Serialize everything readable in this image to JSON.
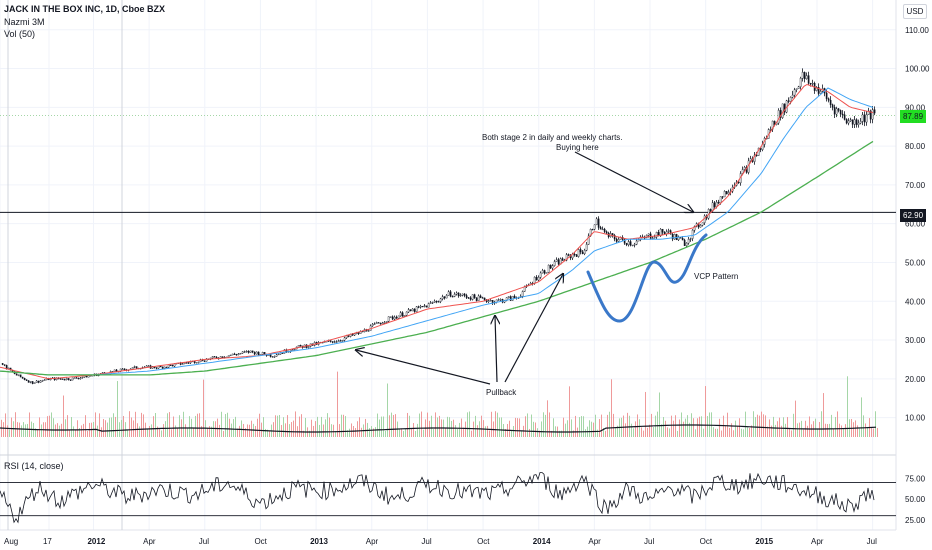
{
  "header": {
    "symbol_line": "JACK IN THE BOX INC, 1D, Cboe BZX",
    "indicator1": "Nazmi 3M",
    "indicator2": "Vol (50)",
    "rsi_label": "RSI (14, close)",
    "currency": "USD"
  },
  "price_tags": {
    "current": "87.89",
    "level": "62.90"
  },
  "annotations": {
    "note_line1": "Both stage 2 in daily and weekly charts.",
    "note_line2": "Buying here",
    "pullback": "Pullback",
    "vcp": "VCP Pattern"
  },
  "colors": {
    "candle": "#131722",
    "ma_short": "#ef5350",
    "ma_mid": "#42a5f5",
    "ma_long": "#4caf50",
    "vcp_curve": "#3a78c9",
    "vol_up": "#a5d6a7",
    "vol_down": "#ef9a9a",
    "current_tag": "#22dd22"
  },
  "chart_data": {
    "type": "line",
    "title": "JACK IN THE BOX INC, 1D, Cboe BZX",
    "x_tick_labels": [
      "Aug",
      "17",
      "2012",
      "Apr",
      "Jul",
      "Oct",
      "2013",
      "Apr",
      "Jul",
      "Oct",
      "2014",
      "Apr",
      "Jul",
      "Oct",
      "2015",
      "Apr",
      "Jul"
    ],
    "x_ticks_numeric": [
      2011.58,
      2011.8,
      2012.0,
      2012.25,
      2012.5,
      2012.75,
      2013.0,
      2013.25,
      2013.5,
      2013.75,
      2014.0,
      2014.25,
      2014.5,
      2014.75,
      2015.0,
      2015.25,
      2015.5
    ],
    "y_tick_labels": [
      "10.00",
      "20.00",
      "30.00",
      "40.00",
      "50.00",
      "60.00",
      "70.00",
      "80.00",
      "90.00",
      "100.00",
      "110.00"
    ],
    "ylim": [
      5,
      112
    ],
    "xlim": [
      2011.58,
      2015.56
    ],
    "grid": true,
    "series": [
      {
        "name": "Price",
        "x": [
          2011.58,
          2011.65,
          2011.72,
          2011.8,
          2011.9,
          2012.0,
          2012.1,
          2012.2,
          2012.3,
          2012.4,
          2012.5,
          2012.6,
          2012.7,
          2012.8,
          2012.9,
          2013.0,
          2013.1,
          2013.2,
          2013.3,
          2013.4,
          2013.5,
          2013.6,
          2013.7,
          2013.8,
          2013.9,
          2014.0,
          2014.08,
          2014.15,
          2014.2,
          2014.25,
          2014.3,
          2014.35,
          2014.42,
          2014.5,
          2014.57,
          2014.65,
          2014.72,
          2014.8,
          2014.9,
          2015.0,
          2015.05,
          2015.1,
          2015.15,
          2015.18,
          2015.22,
          2015.27,
          2015.32,
          2015.4,
          2015.48,
          2015.55
        ],
        "values": [
          24,
          21,
          19,
          20,
          20,
          21,
          22,
          23,
          23,
          24,
          25,
          26,
          27,
          26,
          28,
          29,
          30,
          32,
          35,
          37,
          39,
          42,
          41,
          40,
          41,
          47,
          50,
          52,
          53,
          61,
          57,
          56,
          55,
          57,
          58,
          55,
          60,
          66,
          72,
          80,
          86,
          90,
          95,
          98,
          96,
          94,
          90,
          86,
          88,
          87.89
        ]
      },
      {
        "name": "MA short",
        "x": [
          2011.58,
          2011.8,
          2012.0,
          2012.25,
          2012.5,
          2012.75,
          2013.0,
          2013.25,
          2013.5,
          2013.75,
          2014.0,
          2014.15,
          2014.25,
          2014.4,
          2014.55,
          2014.7,
          2014.85,
          2015.0,
          2015.1,
          2015.2,
          2015.3,
          2015.4,
          2015.55
        ],
        "values": [
          23,
          20,
          21,
          23,
          25,
          26,
          29,
          33,
          38,
          40,
          45,
          52,
          58,
          56,
          57,
          59,
          67,
          80,
          89,
          96,
          94,
          90,
          88
        ]
      },
      {
        "name": "MA mid",
        "x": [
          2011.58,
          2011.8,
          2012.0,
          2012.25,
          2012.5,
          2012.75,
          2013.0,
          2013.25,
          2013.5,
          2013.75,
          2014.0,
          2014.15,
          2014.25,
          2014.4,
          2014.55,
          2014.7,
          2014.85,
          2015.0,
          2015.1,
          2015.2,
          2015.3,
          2015.4,
          2015.55
        ],
        "values": [
          22,
          21,
          21,
          22,
          24,
          26,
          28,
          31,
          35,
          39,
          42,
          48,
          53,
          56,
          56,
          57,
          63,
          73,
          82,
          90,
          95,
          92,
          89
        ]
      },
      {
        "name": "MA long",
        "x": [
          2011.58,
          2011.8,
          2012.0,
          2012.25,
          2012.5,
          2012.75,
          2013.0,
          2013.25,
          2013.5,
          2013.75,
          2014.0,
          2014.25,
          2014.5,
          2014.75,
          2015.0,
          2015.25,
          2015.55
        ],
        "values": [
          22,
          21,
          21,
          21,
          22,
          24,
          26,
          29,
          32,
          36,
          40,
          45,
          50,
          56,
          63,
          72,
          83
        ]
      },
      {
        "name": "RSI",
        "x": [
          2011.58,
          2011.65,
          2011.75,
          2011.85,
          2012.0,
          2012.15,
          2012.3,
          2012.45,
          2012.6,
          2012.75,
          2012.9,
          2013.05,
          2013.2,
          2013.35,
          2013.5,
          2013.65,
          2013.8,
          2014.0,
          2014.1,
          2014.2,
          2014.3,
          2014.4,
          2014.5,
          2014.6,
          2014.7,
          2014.8,
          2014.9,
          2015.0,
          2015.1,
          2015.2,
          2015.3,
          2015.4,
          2015.48,
          2015.55
        ],
        "values": [
          55,
          28,
          65,
          48,
          68,
          52,
          62,
          55,
          70,
          45,
          63,
          60,
          72,
          50,
          68,
          58,
          56,
          78,
          55,
          76,
          38,
          62,
          48,
          65,
          52,
          72,
          66,
          75,
          68,
          60,
          50,
          40,
          58,
          48
        ]
      }
    ],
    "rsi_levels": [
      70,
      30
    ],
    "rsi_tick_labels": [
      "75.00",
      "50.00",
      "25.00"
    ],
    "horizontal_line": 62.9
  }
}
